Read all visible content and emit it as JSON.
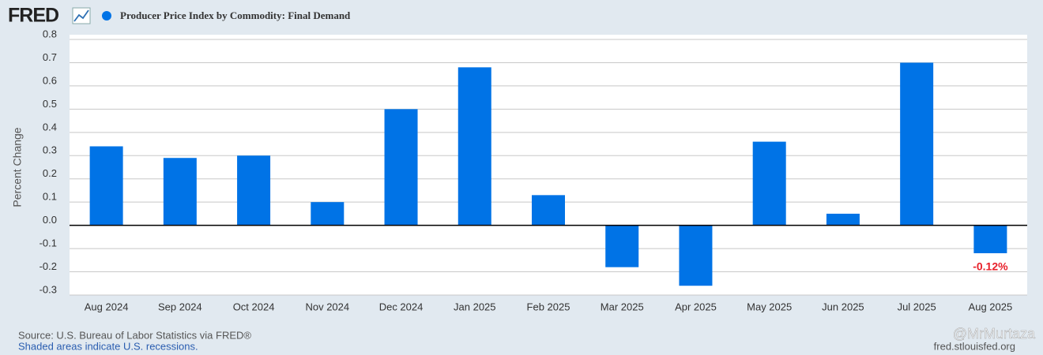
{
  "brand": "FRED",
  "footer": {
    "source": "Source: U.S. Bureau of Labor Statistics via FRED®",
    "note": "Shaded areas indicate U.S. recessions.",
    "site": "fred.stlouisfed.org",
    "watermark": "@MrMurtaza"
  },
  "chart_data": {
    "type": "bar",
    "ylabel": "Percent Change",
    "categories": [
      "Aug 2024",
      "Sep 2024",
      "Oct 2024",
      "Nov 2024",
      "Dec 2024",
      "Jan 2025",
      "Feb 2025",
      "Mar 2025",
      "Apr 2025",
      "May 2025",
      "Jun 2025",
      "Jul 2025",
      "Aug 2025"
    ],
    "series": [
      {
        "name": "Producer Price Index by Commodity: Final Demand",
        "color": "#0073e6",
        "values": [
          0.34,
          0.29,
          0.3,
          0.1,
          0.5,
          0.68,
          0.13,
          -0.18,
          -0.26,
          0.36,
          0.05,
          0.7,
          -0.12
        ],
        "value_labels": [
          null,
          null,
          null,
          null,
          null,
          null,
          null,
          null,
          null,
          null,
          null,
          null,
          "-0.12%"
        ]
      }
    ],
    "ylim": [
      -0.3,
      0.8
    ],
    "yticks": [
      0.8,
      0.7,
      0.6,
      0.5,
      0.4,
      0.3,
      0.2,
      0.1,
      {
        "value": 0,
        "label": "0.0"
      },
      -0.1,
      -0.2,
      -0.3
    ],
    "grid": true
  }
}
